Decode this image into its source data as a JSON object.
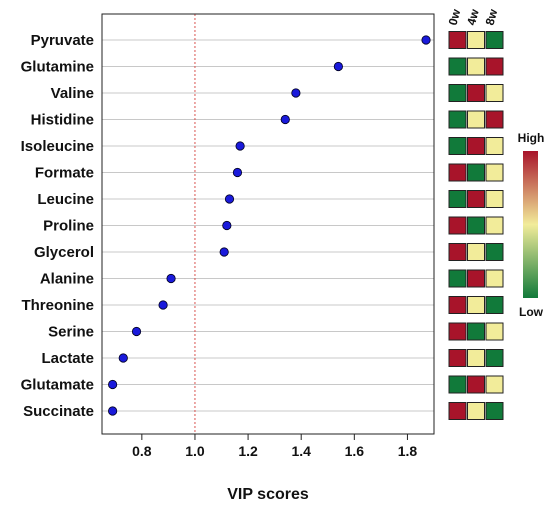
{
  "chart_data": {
    "type": "scatter",
    "xlabel": "VIP scores",
    "xlim": [
      0.65,
      1.9
    ],
    "x_ticks": [
      "0.8",
      "1.0",
      "1.2",
      "1.4",
      "1.6",
      "1.8"
    ],
    "threshold": 1.0,
    "categories": [
      "Pyruvate",
      "Glutamine",
      "Valine",
      "Histidine",
      "Isoleucine",
      "Formate",
      "Leucine",
      "Proline",
      "Glycerol",
      "Alanine",
      "Threonine",
      "Serine",
      "Lactate",
      "Glutamate",
      "Succinate"
    ],
    "values": [
      1.87,
      1.54,
      1.38,
      1.34,
      1.17,
      1.16,
      1.13,
      1.12,
      1.11,
      0.91,
      0.88,
      0.78,
      0.73,
      0.69,
      0.69
    ],
    "point_color": "#1a1adb",
    "grid": true,
    "heatmap": {
      "columns": [
        "0w",
        "4w",
        "8w"
      ],
      "levels": [
        [
          "high",
          "mid",
          "low"
        ],
        [
          "low",
          "mid",
          "high"
        ],
        [
          "low",
          "high",
          "mid"
        ],
        [
          "low",
          "mid",
          "high"
        ],
        [
          "low",
          "high",
          "mid"
        ],
        [
          "high",
          "low",
          "mid"
        ],
        [
          "low",
          "high",
          "mid"
        ],
        [
          "high",
          "low",
          "mid"
        ],
        [
          "high",
          "mid",
          "low"
        ],
        [
          "low",
          "high",
          "mid"
        ],
        [
          "high",
          "mid",
          "low"
        ],
        [
          "high",
          "low",
          "mid"
        ],
        [
          "high",
          "mid",
          "low"
        ],
        [
          "low",
          "high",
          "mid"
        ],
        [
          "high",
          "mid",
          "low"
        ]
      ],
      "colors": {
        "high": "#a8142a",
        "mid": "#f2ec9a",
        "low": "#117a3a"
      }
    },
    "legend": {
      "high_label": "High",
      "low_label": "Low"
    }
  }
}
